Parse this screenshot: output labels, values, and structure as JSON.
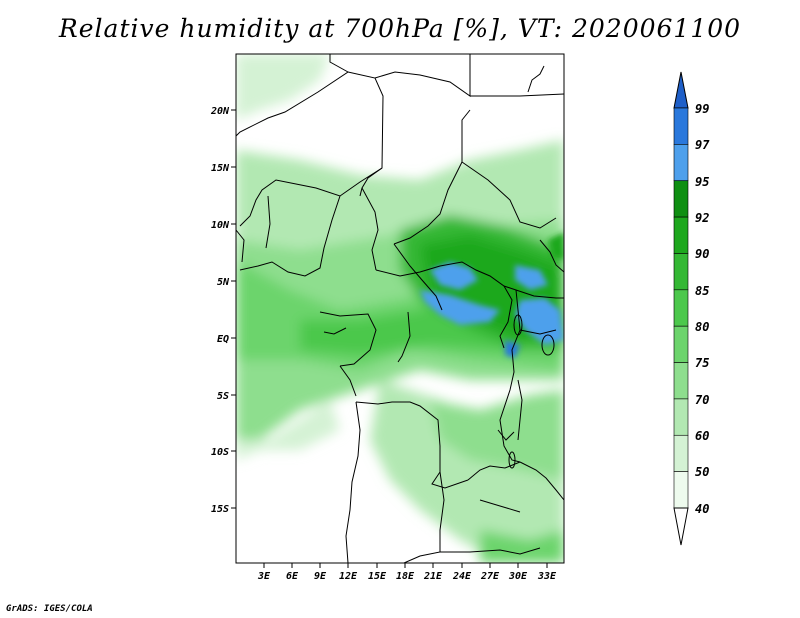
{
  "title": "Relative humidity at 700hPa [%], VT: 2020061100",
  "credit": "GrADS: IGES/COLA",
  "map": {
    "lat_ticks": [
      "20N",
      "15N",
      "10N",
      "5N",
      "EQ",
      "5S",
      "10S",
      "15S"
    ],
    "lon_ticks": [
      "3E",
      "6E",
      "9E",
      "12E",
      "15E",
      "18E",
      "21E",
      "24E",
      "27E",
      "30E",
      "33E"
    ]
  },
  "colorbar": {
    "labels": [
      "99",
      "97",
      "95",
      "92",
      "90",
      "85",
      "80",
      "75",
      "70",
      "60",
      "50",
      "40"
    ],
    "colors": [
      "#1e5fc8",
      "#2a78dc",
      "#4ea0ec",
      "#0f8f12",
      "#1ea81e",
      "#34b834",
      "#4cc84c",
      "#6cd46c",
      "#8ede8e",
      "#b2e8b2",
      "#d4f2d4",
      "#eefbee"
    ]
  }
}
